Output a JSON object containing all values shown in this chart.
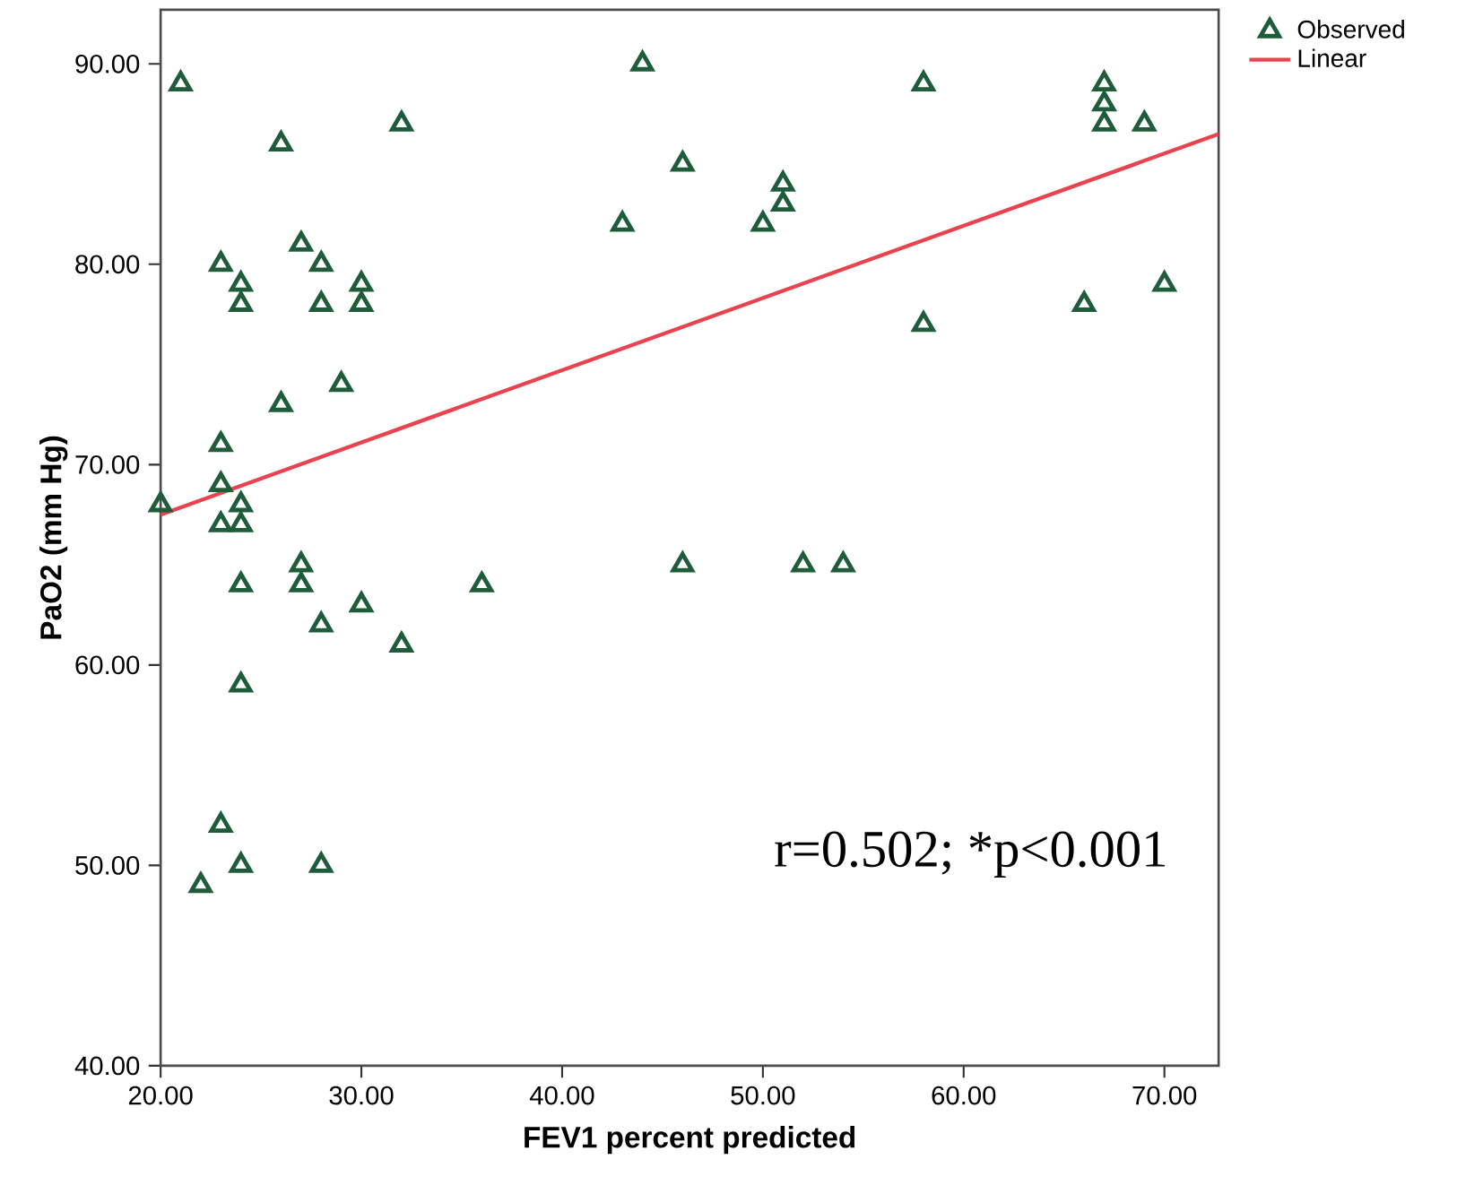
{
  "chart_data": {
    "type": "scatter",
    "xlabel": "FEV1 percent predicted",
    "ylabel": "PaO2 (mm Hg)",
    "xlim": [
      20,
      72.7
    ],
    "ylim": [
      40,
      92.7
    ],
    "xticks": [
      {
        "value": 20,
        "label": "20.00"
      },
      {
        "value": 30,
        "label": "30.00"
      },
      {
        "value": 40,
        "label": "40.00"
      },
      {
        "value": 50,
        "label": "50.00"
      },
      {
        "value": 60,
        "label": "60.00"
      },
      {
        "value": 70,
        "label": "70.00"
      }
    ],
    "yticks": [
      {
        "value": 40,
        "label": "40.00"
      },
      {
        "value": 50,
        "label": "50.00"
      },
      {
        "value": 60,
        "label": "60.00"
      },
      {
        "value": 70,
        "label": "70.00"
      },
      {
        "value": 80,
        "label": "80.00"
      },
      {
        "value": 90,
        "label": "90.00"
      }
    ],
    "grid": false,
    "legend": "top right",
    "marker": "triangle",
    "annotations": [
      "r=0.502; *p<0.001"
    ],
    "series": [
      {
        "name": "Observed",
        "color": "#1f5c3a",
        "x": [
          21,
          26,
          32,
          44,
          58,
          67,
          67,
          67,
          69,
          43,
          46,
          51,
          51,
          50,
          23,
          27,
          28,
          24,
          24,
          28,
          30,
          30,
          58,
          66,
          70,
          29,
          26,
          23,
          23,
          20,
          24,
          23,
          24,
          27,
          27,
          24,
          36,
          46,
          52,
          54,
          30,
          28,
          32,
          24,
          23,
          24,
          28,
          22
        ],
        "values": [
          89,
          86,
          87,
          90,
          89,
          89,
          88,
          87,
          87,
          82,
          85,
          84,
          83,
          82,
          80,
          81,
          80,
          79,
          78,
          78,
          79,
          78,
          77,
          78,
          79,
          74,
          73,
          71,
          69,
          68,
          68,
          67,
          67,
          65,
          64,
          64,
          64,
          65,
          65,
          65,
          63,
          62,
          61,
          59,
          52,
          50,
          50,
          49
        ]
      },
      {
        "name": "Linear",
        "type": "line",
        "marker": "none",
        "color": "#e8434f",
        "x": [
          20,
          72.7
        ],
        "values": [
          67.5,
          86.5
        ]
      }
    ]
  }
}
